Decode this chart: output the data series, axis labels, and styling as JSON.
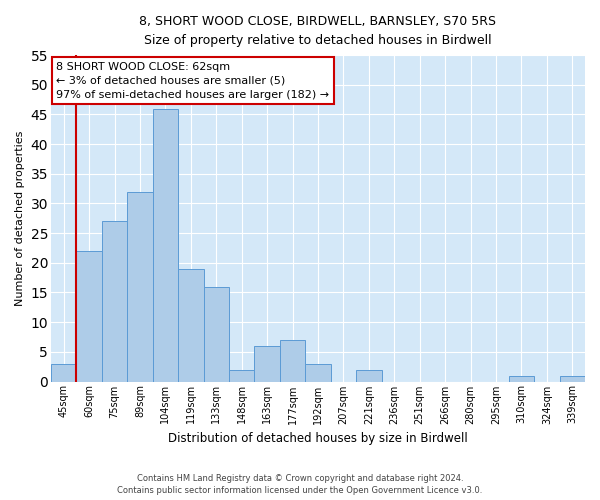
{
  "title": "8, SHORT WOOD CLOSE, BIRDWELL, BARNSLEY, S70 5RS",
  "subtitle": "Size of property relative to detached houses in Birdwell",
  "xlabel": "Distribution of detached houses by size in Birdwell",
  "ylabel": "Number of detached properties",
  "bar_labels": [
    "45sqm",
    "60sqm",
    "75sqm",
    "89sqm",
    "104sqm",
    "119sqm",
    "133sqm",
    "148sqm",
    "163sqm",
    "177sqm",
    "192sqm",
    "207sqm",
    "221sqm",
    "236sqm",
    "251sqm",
    "266sqm",
    "280sqm",
    "295sqm",
    "310sqm",
    "324sqm",
    "339sqm"
  ],
  "bar_values": [
    3,
    22,
    27,
    32,
    46,
    19,
    16,
    2,
    6,
    7,
    3,
    0,
    2,
    0,
    0,
    0,
    0,
    0,
    1,
    0,
    1
  ],
  "bar_color": "#aecce8",
  "bar_edge_color": "#5b9bd5",
  "vline_index": 1,
  "vline_color": "#cc0000",
  "ylim": [
    0,
    55
  ],
  "yticks": [
    0,
    5,
    10,
    15,
    20,
    25,
    30,
    35,
    40,
    45,
    50,
    55
  ],
  "annotation_line1": "8 SHORT WOOD CLOSE: 62sqm",
  "annotation_line2": "← 3% of detached houses are smaller (5)",
  "annotation_line3": "97% of semi-detached houses are larger (182) →",
  "annotation_box_color": "#ffffff",
  "annotation_box_edge": "#cc0000",
  "footer_line1": "Contains HM Land Registry data © Crown copyright and database right 2024.",
  "footer_line2": "Contains public sector information licensed under the Open Government Licence v3.0.",
  "background_color": "#ffffff",
  "grid_color": "#d4e8f8"
}
